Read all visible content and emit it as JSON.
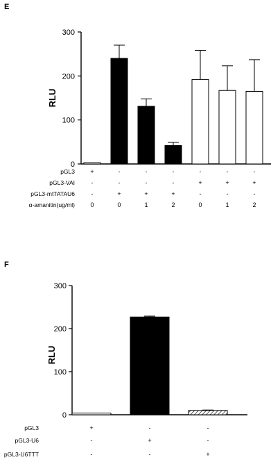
{
  "chart_data": [
    {
      "type": "bar",
      "panel_label": "E",
      "ylabel": "RLU",
      "ylim": [
        0,
        300
      ],
      "yticks": [
        "0",
        "100",
        "200",
        "300"
      ],
      "bars": [
        {
          "value": 3,
          "error": 0,
          "fill": "#ffffff"
        },
        {
          "value": 240,
          "error": 30,
          "fill": "#000000"
        },
        {
          "value": 131,
          "error": 17,
          "fill": "#000000"
        },
        {
          "value": 42,
          "error": 7,
          "fill": "#000000"
        },
        {
          "value": 192,
          "error": 66,
          "fill": "#ffffff"
        },
        {
          "value": 167,
          "error": 56,
          "fill": "#ffffff"
        },
        {
          "value": 165,
          "error": 72,
          "fill": "#ffffff"
        }
      ],
      "rows": [
        {
          "label": "pGL3",
          "cells": [
            "+",
            "-",
            "-",
            "-",
            "-",
            "-",
            "-"
          ]
        },
        {
          "label": "pGL3-VAI",
          "cells": [
            "-",
            "-",
            "-",
            "-",
            "+",
            "+",
            "+"
          ]
        },
        {
          "label": "pGL3-mtTATAU6",
          "cells": [
            "-",
            "+",
            "+",
            "+",
            "-",
            "-",
            "-"
          ]
        },
        {
          "label": "α-amanitin(ug/ml)",
          "cells": [
            "0",
            "0",
            "1",
            "2",
            "0",
            "1",
            "2"
          ]
        }
      ]
    },
    {
      "type": "bar",
      "panel_label": "F",
      "ylabel": "RLU",
      "ylim": [
        0,
        300
      ],
      "yticks": [
        "0",
        "100",
        "200",
        "300"
      ],
      "bars": [
        {
          "value": 4,
          "error": 0,
          "fill": "#ffffff"
        },
        {
          "value": 227,
          "error": 2,
          "fill": "#000000"
        },
        {
          "value": 10,
          "error": 1,
          "fill": "hatch"
        }
      ],
      "rows": [
        {
          "label": "pGL3",
          "cells": [
            "+",
            "-",
            "-"
          ]
        },
        {
          "label": "pGL3-U6",
          "cells": [
            "-",
            "+",
            "-"
          ]
        },
        {
          "label": "pGL3-U6TTT",
          "cells": [
            "-",
            "-",
            "+"
          ]
        }
      ]
    }
  ]
}
